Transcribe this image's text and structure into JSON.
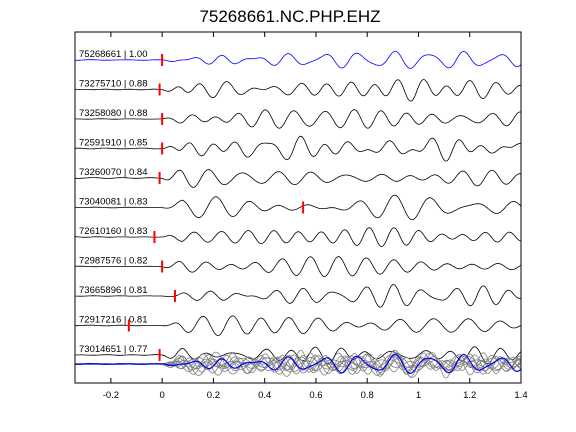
{
  "chart_data": {
    "type": "line",
    "title": "75268661.NC.PHP.EHZ",
    "xlabel": "",
    "ylabel": "",
    "xlim": [
      -0.34,
      1.4
    ],
    "x_ticks": [
      -0.2,
      0,
      0.2,
      0.4,
      0.6,
      0.8,
      1,
      1.2,
      1.4
    ],
    "x_tick_labels": [
      "-0.2",
      "0",
      "0.2",
      "0.4",
      "0.6",
      "0.8",
      "1",
      "1.2",
      "1.4"
    ],
    "grid": false,
    "colors": {
      "reference": "#0000ff",
      "trace": "#000000",
      "pick": "#ff0000",
      "stack": "#808080"
    },
    "series": [
      {
        "id": "75268661",
        "cc": "1.00",
        "pick_time": 0.0,
        "color": "reference"
      },
      {
        "id": "73275710",
        "cc": "0.88",
        "pick_time": -0.01
      },
      {
        "id": "73258080",
        "cc": "0.88",
        "pick_time": 0.0
      },
      {
        "id": "72591910",
        "cc": "0.85",
        "pick_time": 0.0
      },
      {
        "id": "73260070",
        "cc": "0.84",
        "pick_time": -0.01
      },
      {
        "id": "73040081",
        "cc": "0.83",
        "pick_time": 0.55
      },
      {
        "id": "72610160",
        "cc": "0.83",
        "pick_time": -0.03
      },
      {
        "id": "72987576",
        "cc": "0.82",
        "pick_time": 0.0
      },
      {
        "id": "73665896",
        "cc": "0.81",
        "pick_time": 0.05
      },
      {
        "id": "72917216",
        "cc": "0.81",
        "pick_time": -0.13
      },
      {
        "id": "73014651",
        "cc": "0.77",
        "pick_time": -0.01
      }
    ],
    "stack_panel": {
      "overlay_count": 11
    }
  }
}
